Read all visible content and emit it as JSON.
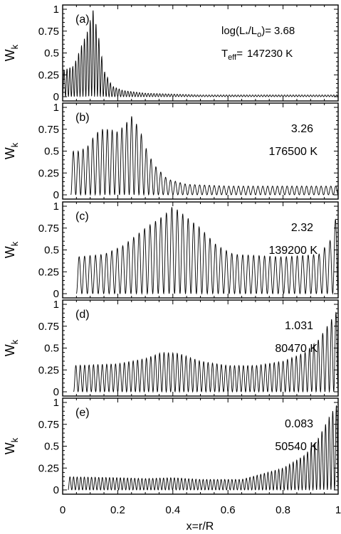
{
  "chart_data": {
    "type": "line",
    "xlabel": "x=r/R",
    "ylabel_main": "W",
    "ylabel_sub": "k",
    "xlim": [
      0,
      1
    ],
    "ylim": [
      0,
      1.0
    ],
    "x_tick_labels": [
      "0",
      "0.2",
      "0.4",
      "0.6",
      "0.8",
      "1"
    ],
    "y_tick_labels": [
      "0",
      "0.25",
      "0.5",
      "0.75",
      "1"
    ],
    "legend_header": {
      "lum_prefix": "log(L",
      "lum_sub1": "*",
      "lum_mid": "/L",
      "lum_sub2": "o",
      "lum_suffix": ")=",
      "teff_prefix": "T",
      "teff_sub": "eff",
      "teff_suffix": "="
    },
    "panels": [
      {
        "label": "(a)",
        "log_luminosity": "3.68",
        "teff": "147230 K",
        "envelope": [
          [
            0.0,
            0.3
          ],
          [
            0.04,
            0.35
          ],
          [
            0.07,
            0.6
          ],
          [
            0.09,
            0.75
          ],
          [
            0.11,
            1.0
          ],
          [
            0.13,
            0.7
          ],
          [
            0.15,
            0.3
          ],
          [
            0.18,
            0.12
          ],
          [
            0.22,
            0.07
          ],
          [
            0.3,
            0.04
          ],
          [
            0.5,
            0.02
          ],
          [
            0.7,
            0.02
          ],
          [
            1.0,
            0.02
          ]
        ],
        "osc_count": 95,
        "baseline": 0.0
      },
      {
        "label": "(b)",
        "log_luminosity": "3.26",
        "teff": "176500 K",
        "envelope": [
          [
            0.03,
            0.5
          ],
          [
            0.06,
            0.5
          ],
          [
            0.09,
            0.55
          ],
          [
            0.12,
            0.7
          ],
          [
            0.14,
            0.75
          ],
          [
            0.17,
            0.75
          ],
          [
            0.2,
            0.72
          ],
          [
            0.22,
            0.78
          ],
          [
            0.25,
            0.9
          ],
          [
            0.28,
            0.75
          ],
          [
            0.3,
            0.55
          ],
          [
            0.33,
            0.35
          ],
          [
            0.38,
            0.18
          ],
          [
            0.45,
            0.12
          ],
          [
            0.6,
            0.1
          ],
          [
            0.8,
            0.1
          ],
          [
            1.0,
            0.1
          ]
        ],
        "osc_count": 55,
        "baseline": 0.0
      },
      {
        "label": "(c)",
        "log_luminosity": "2.32",
        "teff": "139200 K",
        "envelope": [
          [
            0.05,
            0.42
          ],
          [
            0.15,
            0.45
          ],
          [
            0.22,
            0.55
          ],
          [
            0.3,
            0.75
          ],
          [
            0.37,
            0.9
          ],
          [
            0.4,
            1.0
          ],
          [
            0.44,
            0.9
          ],
          [
            0.5,
            0.75
          ],
          [
            0.56,
            0.55
          ],
          [
            0.62,
            0.45
          ],
          [
            0.8,
            0.42
          ],
          [
            0.93,
            0.45
          ],
          [
            0.97,
            0.6
          ],
          [
            0.99,
            0.85
          ],
          [
            1.0,
            0.9
          ]
        ],
        "osc_count": 48,
        "baseline": 0.0
      },
      {
        "label": "(d)",
        "log_luminosity": "1.031",
        "teff": "80470 K",
        "envelope": [
          [
            0.04,
            0.3
          ],
          [
            0.2,
            0.32
          ],
          [
            0.3,
            0.38
          ],
          [
            0.36,
            0.45
          ],
          [
            0.42,
            0.44
          ],
          [
            0.5,
            0.35
          ],
          [
            0.6,
            0.3
          ],
          [
            0.7,
            0.3
          ],
          [
            0.8,
            0.35
          ],
          [
            0.88,
            0.45
          ],
          [
            0.93,
            0.6
          ],
          [
            0.97,
            0.8
          ],
          [
            1.0,
            0.95
          ]
        ],
        "osc_count": 60,
        "baseline": 0.0
      },
      {
        "label": "(e)",
        "log_luminosity": "0.083",
        "teff": "50540 K",
        "envelope": [
          [
            0.02,
            0.15
          ],
          [
            0.2,
            0.14
          ],
          [
            0.3,
            0.13
          ],
          [
            0.4,
            0.14
          ],
          [
            0.5,
            0.12
          ],
          [
            0.65,
            0.12
          ],
          [
            0.72,
            0.18
          ],
          [
            0.8,
            0.25
          ],
          [
            0.88,
            0.4
          ],
          [
            0.93,
            0.6
          ],
          [
            0.97,
            0.85
          ],
          [
            1.0,
            1.0
          ]
        ],
        "osc_count": 75,
        "baseline": 0.0
      }
    ]
  }
}
